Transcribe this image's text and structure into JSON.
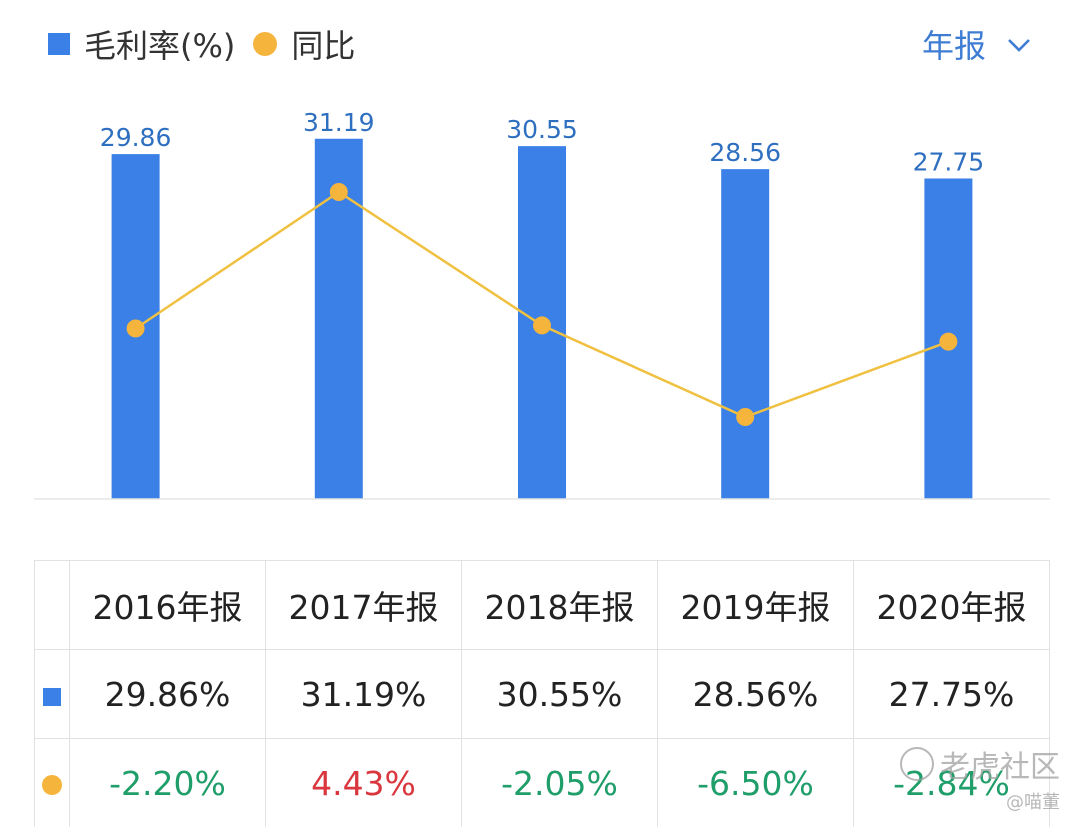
{
  "legend": {
    "bar_label": "毛利率(%)",
    "line_label": "同比"
  },
  "period_selector": {
    "label": "年报"
  },
  "colors": {
    "bar": "#3a80e6",
    "line": "#f0c040",
    "point": "#f5b43c",
    "value_label": "#2f6fc0",
    "positive": "#d9363e",
    "negative": "#1f9e6a"
  },
  "chart_data": {
    "type": "bar",
    "categories": [
      "2016年报",
      "2017年报",
      "2018年报",
      "2019年报",
      "2020年报"
    ],
    "series": [
      {
        "name": "毛利率(%)",
        "type": "bar",
        "values": [
          29.86,
          31.19,
          30.55,
          28.56,
          27.75
        ]
      },
      {
        "name": "同比",
        "type": "line",
        "values": [
          -2.2,
          4.43,
          -2.05,
          -6.5,
          -2.84
        ]
      }
    ],
    "bar_labels": [
      "29.86",
      "31.19",
      "30.55",
      "28.56",
      "27.75"
    ],
    "legend_position": "top-left",
    "grid": false
  },
  "table": {
    "headers": [
      "2016年报",
      "2017年报",
      "2018年报",
      "2019年报",
      "2020年报"
    ],
    "rows": [
      {
        "icon": "square-icon",
        "cells": [
          "29.86%",
          "31.19%",
          "30.55%",
          "28.56%",
          "27.75%"
        ]
      },
      {
        "icon": "dot-icon",
        "cells": [
          "-2.20%",
          "4.43%",
          "-2.05%",
          "-6.50%",
          "-2.84%"
        ]
      }
    ]
  },
  "watermark": {
    "main": "老虎社区",
    "sub": "@喵董"
  }
}
